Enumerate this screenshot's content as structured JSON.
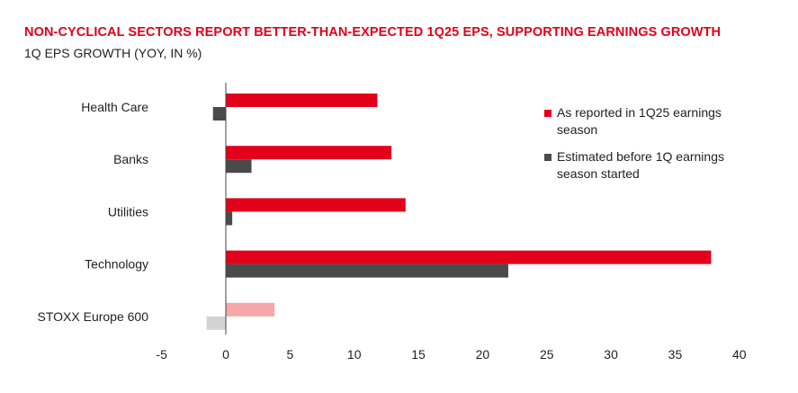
{
  "chart_data": {
    "type": "bar",
    "orientation": "horizontal",
    "title": "NON-CYCLICAL SECTORS REPORT BETTER-THAN-EXPECTED 1Q25 EPS, SUPPORTING EARNINGS GROWTH",
    "subtitle": "1Q EPS GROWTH (YOY, IN %)",
    "categories": [
      "Health Care",
      "Banks",
      "Utilities",
      "Technology",
      "STOXX Europe 600"
    ],
    "series": [
      {
        "name": "As reported in 1Q25 earnings season",
        "values": [
          11.8,
          12.9,
          14.0,
          37.8,
          3.8
        ],
        "color": "#e2001a",
        "highlight_color": "#f5a8a8"
      },
      {
        "name": "Estimated before 1Q earnings season started",
        "values": [
          -1.0,
          2.0,
          0.5,
          22.0,
          -1.5
        ],
        "color": "#4a4a4a",
        "highlight_color": "#d3d3d3"
      }
    ],
    "highlight_category": "STOXX Europe 600",
    "xlim": [
      -5,
      40
    ],
    "xticks": [
      -5,
      0,
      5,
      10,
      15,
      20,
      25,
      30,
      35,
      40
    ],
    "xlabel": "",
    "ylabel": "",
    "grid": false,
    "legend_position": "right"
  },
  "colors": {
    "title": "#e2001a",
    "axis": "#444444"
  }
}
